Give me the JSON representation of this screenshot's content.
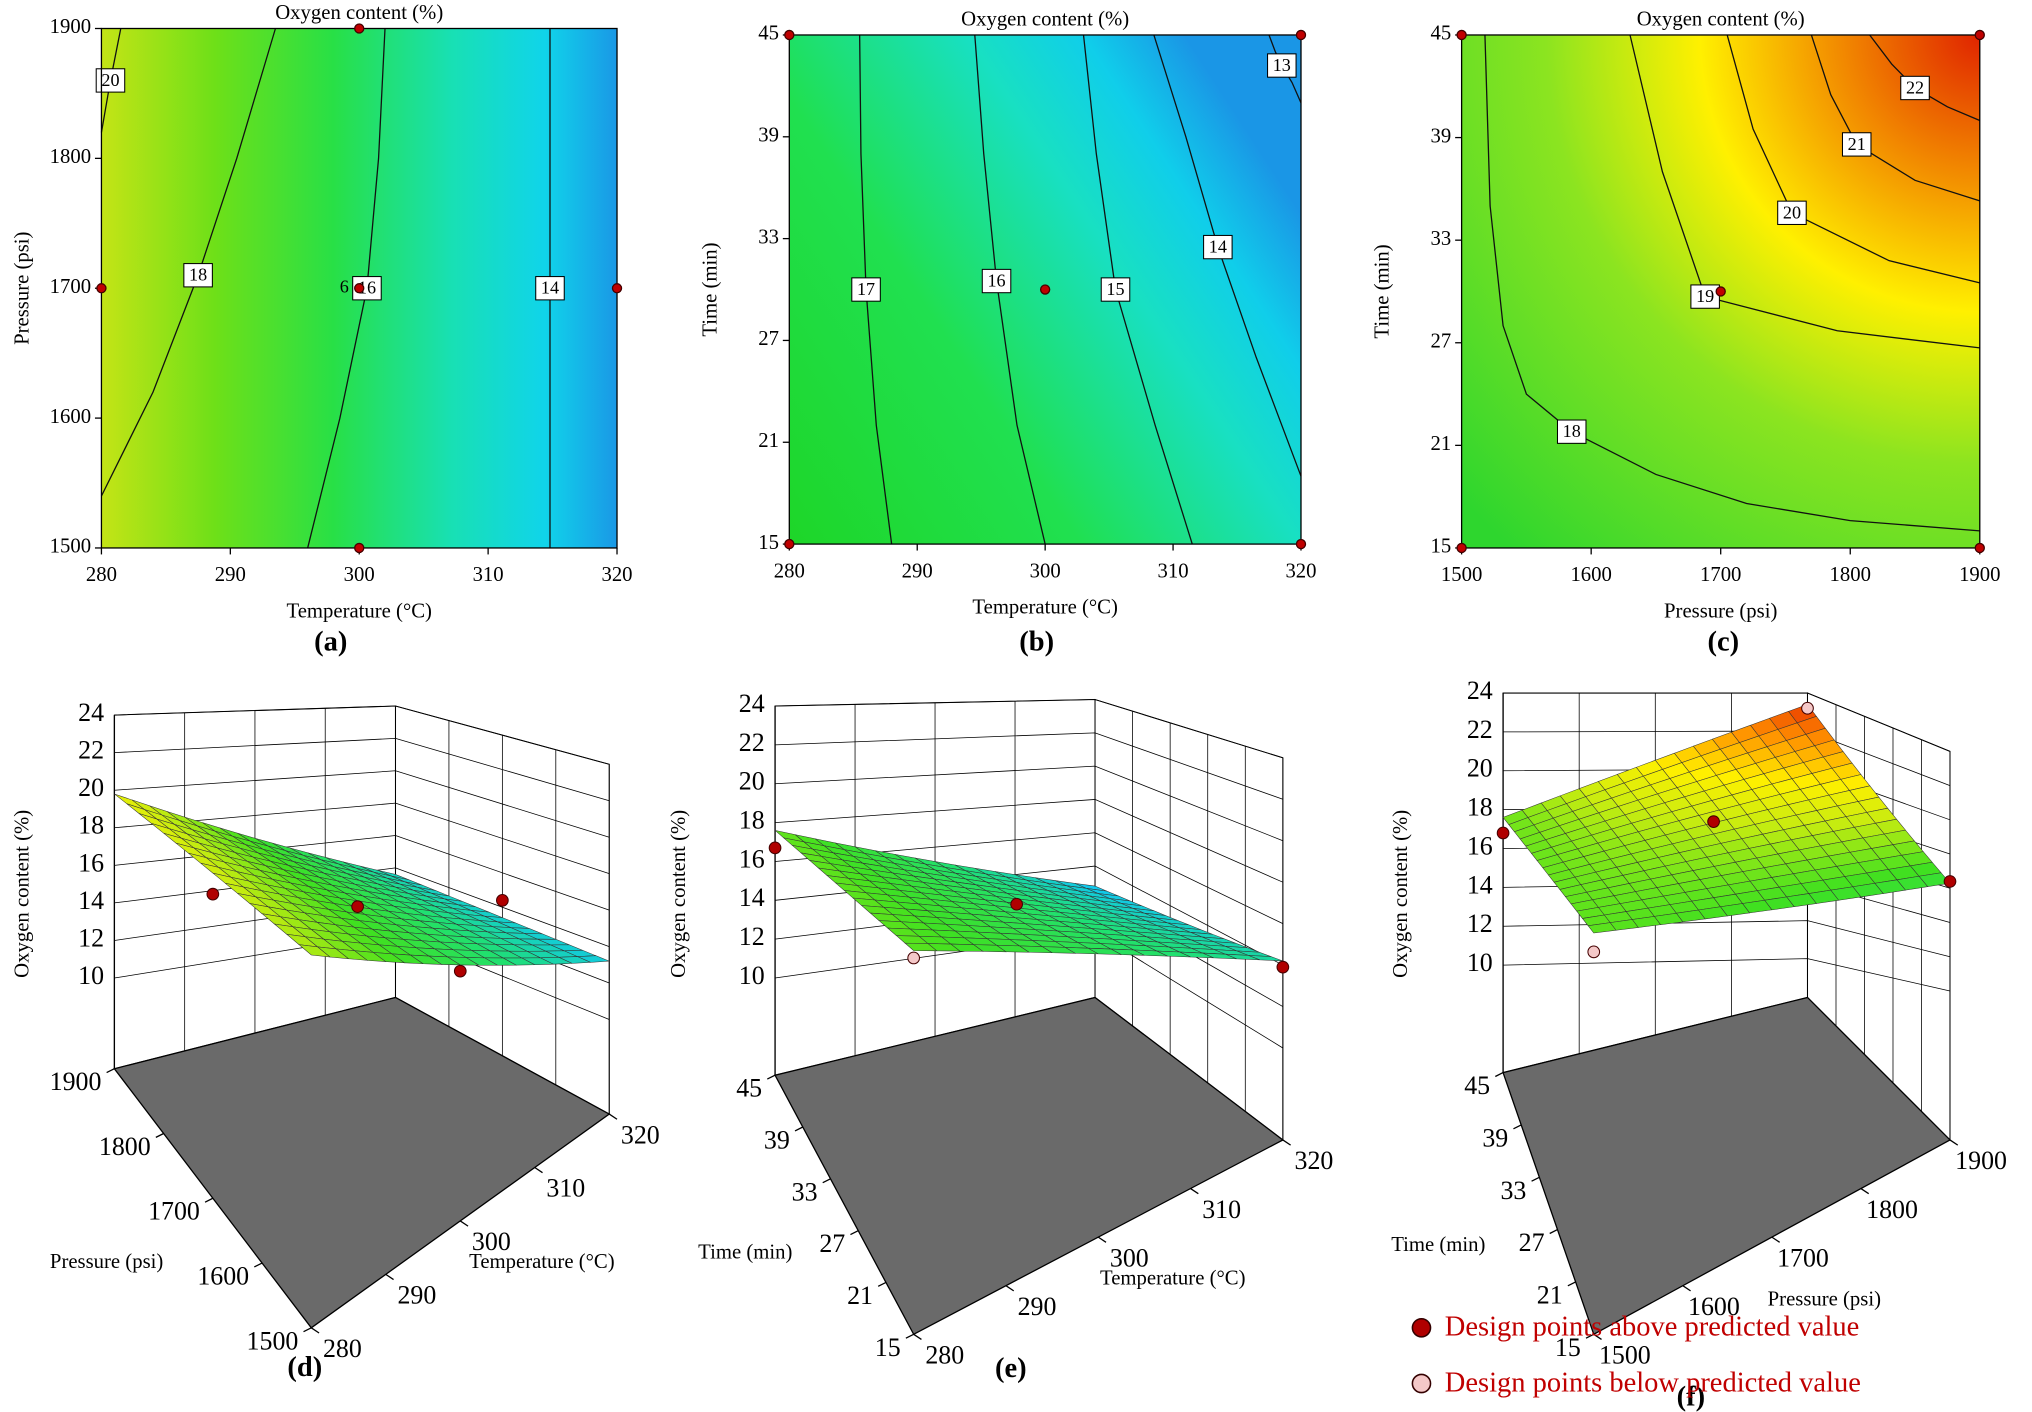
{
  "legend": {
    "entries": [
      {
        "label": "Design points above predicted value",
        "color": "#b00000"
      },
      {
        "label": "Design points below predicted value",
        "color": "#f4c8c8"
      }
    ]
  },
  "chart_data": [
    {
      "type": "contour",
      "caption": "(a)",
      "title": "Oxygen content (%)",
      "xlabel": "Temperature (°C)",
      "ylabel": "Pressure (psi)",
      "xlim": [
        280,
        320
      ],
      "ylim": [
        1500,
        1900
      ],
      "xticks": [
        280,
        290,
        300,
        310,
        320
      ],
      "yticks": [
        1500,
        1600,
        1700,
        1800,
        1900
      ],
      "contours": [
        {
          "level": 20,
          "points": [
            [
              280,
              1820
            ],
            [
              280.7,
              1860
            ],
            [
              281.5,
              1900
            ]
          ]
        },
        {
          "level": 18,
          "points": [
            [
              280,
              1540
            ],
            [
              284,
              1620
            ],
            [
              287.5,
              1710
            ],
            [
              290.5,
              1800
            ],
            [
              293.5,
              1900
            ]
          ]
        },
        {
          "level": 16,
          "points": [
            [
              296,
              1500
            ],
            [
              298.5,
              1600
            ],
            [
              300.6,
              1700
            ],
            [
              301.5,
              1800
            ],
            [
              302,
              1900
            ]
          ]
        },
        {
          "level": 14,
          "points": [
            [
              314.8,
              1500
            ],
            [
              314.8,
              1600
            ],
            [
              314.8,
              1700
            ],
            [
              314.8,
              1800
            ],
            [
              314.8,
              1900
            ]
          ]
        }
      ],
      "point_color": "#c00000",
      "design_points": [
        [
          280,
          1700
        ],
        [
          300,
          1900
        ],
        [
          300,
          1700
        ],
        [
          300,
          1500
        ],
        [
          320,
          1700
        ]
      ],
      "annotations": [
        {
          "text": "6",
          "x": 300,
          "y": 1700
        }
      ]
    },
    {
      "type": "contour",
      "caption": "(b)",
      "title": "Oxygen content (%)",
      "xlabel": "Temperature (°C)",
      "ylabel": "Time (min)",
      "xlim": [
        280,
        320
      ],
      "ylim": [
        15,
        45
      ],
      "xticks": [
        280,
        290,
        300,
        310,
        320
      ],
      "yticks": [
        15,
        21,
        27,
        33,
        39,
        45
      ],
      "contours": [
        {
          "level": 17,
          "points": [
            [
              288,
              15
            ],
            [
              286.8,
              22
            ],
            [
              286,
              30
            ],
            [
              285.6,
              38
            ],
            [
              285.5,
              45
            ]
          ]
        },
        {
          "level": 16,
          "points": [
            [
              300,
              15
            ],
            [
              297.8,
              22
            ],
            [
              296.2,
              30.5
            ],
            [
              295.2,
              38
            ],
            [
              294.5,
              45
            ]
          ]
        },
        {
          "level": 15,
          "points": [
            [
              311.5,
              15
            ],
            [
              308.6,
              22
            ],
            [
              305.5,
              30
            ],
            [
              304,
              38
            ],
            [
              303,
              45
            ]
          ]
        },
        {
          "level": 14,
          "points": [
            [
              320,
              19
            ],
            [
              316.5,
              26
            ],
            [
              313.5,
              32.5
            ],
            [
              311,
              39
            ],
            [
              308.5,
              45
            ]
          ]
        },
        {
          "level": 13,
          "points": [
            [
              320,
              41
            ],
            [
              319.3,
              42.2
            ],
            [
              318.5,
              43.2
            ],
            [
              318,
              44
            ],
            [
              317.5,
              45
            ]
          ]
        }
      ],
      "point_color": "#c00000",
      "design_points": [
        [
          280,
          45
        ],
        [
          320,
          45
        ],
        [
          300,
          30
        ],
        [
          280,
          15
        ],
        [
          320,
          15
        ]
      ]
    },
    {
      "type": "contour",
      "caption": "(c)",
      "title": "Oxygen content (%)",
      "xlabel": "Pressure (psi)",
      "ylabel": "Time (min)",
      "xlim": [
        1500,
        1900
      ],
      "ylim": [
        15,
        45
      ],
      "xticks": [
        1500,
        1600,
        1700,
        1800,
        1900
      ],
      "yticks": [
        15,
        21,
        27,
        33,
        39,
        45
      ],
      "contours": [
        {
          "level": 18,
          "points": [
            [
              1518,
              45
            ],
            [
              1522,
              35
            ],
            [
              1532,
              28
            ],
            [
              1550,
              24
            ],
            [
              1585,
              21.8
            ],
            [
              1650,
              19.3
            ],
            [
              1720,
              17.6
            ],
            [
              1800,
              16.6
            ],
            [
              1900,
              16
            ]
          ]
        },
        {
          "level": 19,
          "points": [
            [
              1630,
              45
            ],
            [
              1655,
              37
            ],
            [
              1688,
              29.7
            ],
            [
              1790,
              27.7
            ],
            [
              1900,
              26.7
            ]
          ]
        },
        {
          "level": 20,
          "points": [
            [
              1705,
              45
            ],
            [
              1725,
              39.5
            ],
            [
              1755,
              34.6
            ],
            [
              1830,
              31.8
            ],
            [
              1900,
              30.5
            ]
          ]
        },
        {
          "level": 21,
          "points": [
            [
              1770,
              45
            ],
            [
              1785,
              41.5
            ],
            [
              1805,
              38.6
            ],
            [
              1850,
              36.5
            ],
            [
              1900,
              35.3
            ]
          ]
        },
        {
          "level": 22,
          "points": [
            [
              1815,
              45
            ],
            [
              1832,
              43.3
            ],
            [
              1850,
              41.9
            ],
            [
              1875,
              40.8
            ],
            [
              1900,
              40
            ]
          ]
        }
      ],
      "point_color": "#c00000",
      "design_points": [
        [
          1500,
          45
        ],
        [
          1900,
          45
        ],
        [
          1700,
          30
        ],
        [
          1500,
          15
        ],
        [
          1900,
          15
        ]
      ]
    },
    {
      "type": "surface3d",
      "caption": "(d)",
      "xlabel": "Temperature (°C)",
      "ylabel": "Pressure (psi)",
      "zlabel": "Oxygen content (%)",
      "xlim": [
        280,
        320
      ],
      "ylim": [
        1500,
        1900
      ],
      "zlim": [
        10,
        24
      ],
      "xticks": [
        280,
        290,
        300,
        310,
        320
      ],
      "yticks": [
        1500,
        1600,
        1700,
        1800,
        1900
      ],
      "zticks": [
        10,
        12,
        14,
        16,
        18,
        20,
        22,
        24
      ],
      "z_grid": [
        [
          18.6,
          13.2
        ],
        [
          19.8,
          13.6
        ]
      ],
      "design_points": {
        "above": [
          [
            280,
            1700,
            18.2
          ],
          [
            300,
            1700,
            16
          ],
          [
            320,
            1700,
            14.4
          ],
          [
            300,
            1500,
            15.6
          ]
        ],
        "below": []
      }
    },
    {
      "type": "surface3d",
      "caption": "(e)",
      "xlabel": "Temperature (°C)",
      "ylabel": "Time (min)",
      "zlabel": "Oxygen content (%)",
      "xlim": [
        280,
        320
      ],
      "ylim": [
        15,
        45
      ],
      "zlim": [
        10,
        24
      ],
      "xticks": [
        280,
        290,
        300,
        310,
        320
      ],
      "yticks": [
        15,
        21,
        27,
        33,
        39,
        45
      ],
      "zticks": [
        10,
        12,
        14,
        16,
        18,
        20,
        22,
        24
      ],
      "z_grid": [
        [
          17.4,
          14.2
        ],
        [
          17.6,
          12.8
        ]
      ],
      "design_points": {
        "above": [
          [
            280,
            45,
            16.7
          ],
          [
            300,
            30,
            15.7
          ],
          [
            320,
            15,
            13.9
          ]
        ],
        "below": [
          [
            280,
            15,
            17
          ]
        ]
      }
    },
    {
      "type": "surface3d",
      "caption": "(f)",
      "xlabel": "Pressure (psi)",
      "ylabel": "Time (min)",
      "zlabel": "Oxygen content (%)",
      "xlim": [
        1500,
        1900
      ],
      "ylim": [
        15,
        45
      ],
      "zlim": [
        10,
        24
      ],
      "xticks": [
        1500,
        1600,
        1700,
        1800,
        1900
      ],
      "yticks": [
        15,
        21,
        27,
        33,
        39,
        45
      ],
      "zticks": [
        10,
        12,
        14,
        16,
        18,
        20,
        22,
        24
      ],
      "z_grid": [
        [
          17.4,
          16.3
        ],
        [
          17.6,
          23.4
        ]
      ],
      "design_points": {
        "above": [
          [
            1500,
            45,
            16.8
          ],
          [
            1700,
            30,
            19.3
          ],
          [
            1900,
            15,
            16.4
          ]
        ],
        "below": [
          [
            1900,
            45,
            23.2
          ],
          [
            1500,
            15,
            16.6
          ]
        ]
      }
    }
  ]
}
